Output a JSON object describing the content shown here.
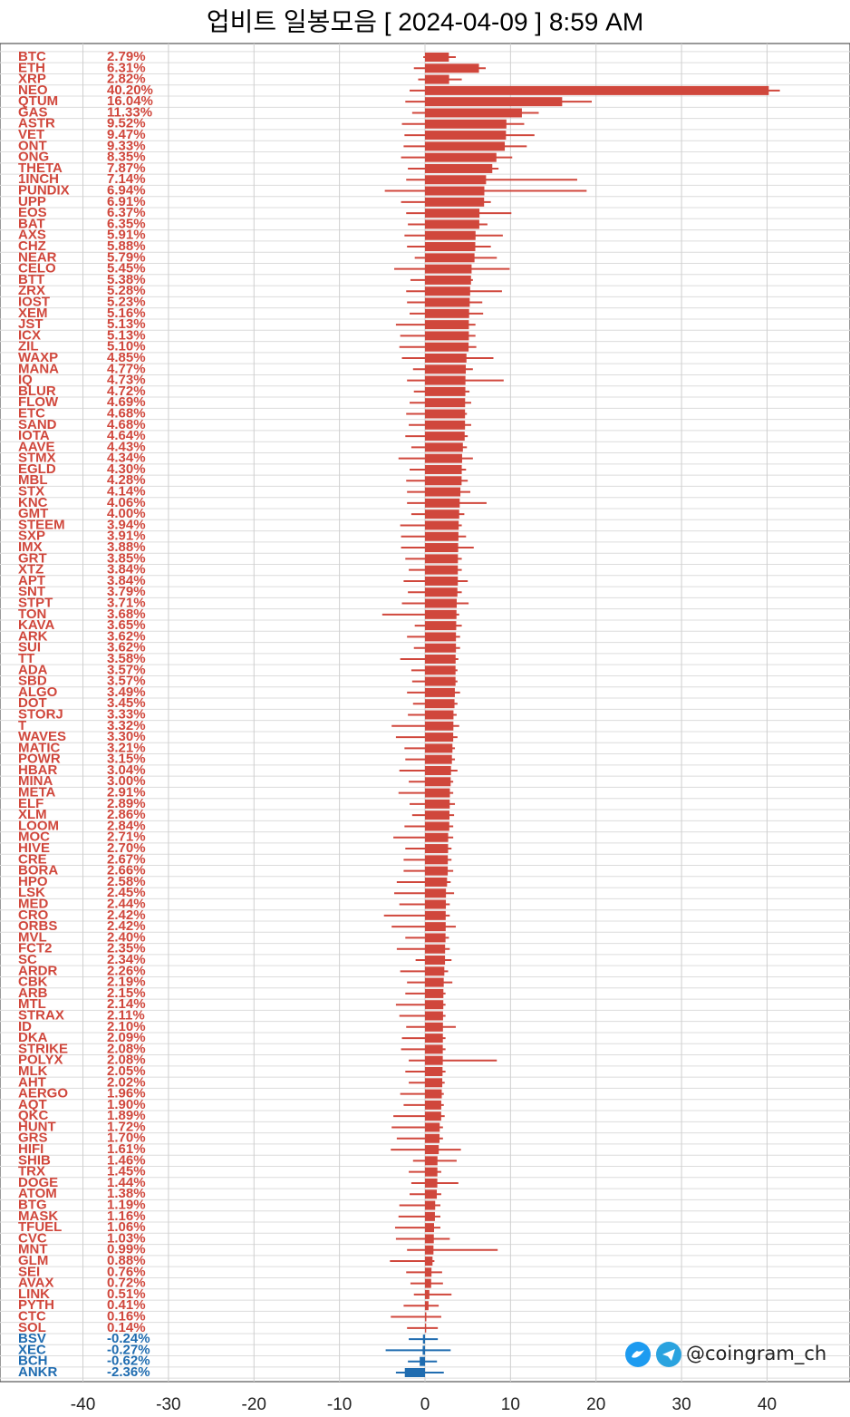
{
  "chart_data": {
    "type": "bar",
    "orientation": "horizontal",
    "title": "업비트 일봉모음 [ 2024-04-09 ]  8:59 AM",
    "watermark": "@coingram_ch",
    "categories": [
      "BTC",
      "ETH",
      "XRP",
      "NEO",
      "QTUM",
      "GAS",
      "ASTR",
      "VET",
      "ONT",
      "ONG",
      "THETA",
      "1INCH",
      "PUNDIX",
      "UPP",
      "EOS",
      "BAT",
      "AXS",
      "CHZ",
      "NEAR",
      "CELO",
      "BTT",
      "ZRX",
      "IOST",
      "XEM",
      "JST",
      "ICX",
      "ZIL",
      "WAXP",
      "MANA",
      "IQ",
      "BLUR",
      "FLOW",
      "ETC",
      "SAND",
      "IOTA",
      "AAVE",
      "STMX",
      "EGLD",
      "MBL",
      "STX",
      "KNC",
      "GMT",
      "STEEM",
      "SXP",
      "IMX",
      "GRT",
      "XTZ",
      "APT",
      "SNT",
      "STPT",
      "TON",
      "KAVA",
      "ARK",
      "SUI",
      "TT",
      "ADA",
      "SBD",
      "ALGO",
      "DOT",
      "STORJ",
      "T",
      "WAVES",
      "MATIC",
      "POWR",
      "HBAR",
      "MINA",
      "META",
      "ELF",
      "XLM",
      "LOOM",
      "MOC",
      "HIVE",
      "CRE",
      "BORA",
      "HPO",
      "LSK",
      "MED",
      "CRO",
      "ORBS",
      "MVL",
      "FCT2",
      "SC",
      "ARDR",
      "CBK",
      "ARB",
      "MTL",
      "STRAX",
      "ID",
      "DKA",
      "STRIKE",
      "POLYX",
      "MLK",
      "AHT",
      "AERGO",
      "AQT",
      "QKC",
      "HUNT",
      "GRS",
      "HIFI",
      "SHIB",
      "TRX",
      "DOGE",
      "ATOM",
      "BTG",
      "MASK",
      "TFUEL",
      "CVC",
      "MNT",
      "GLM",
      "SEI",
      "AVAX",
      "LINK",
      "PYTH",
      "CTC",
      "SOL",
      "BSV",
      "XEC",
      "BCH",
      "ANKR"
    ],
    "series": [
      {
        "values": [
          2.79,
          6.31,
          2.82,
          40.2,
          16.04,
          11.33,
          9.52,
          9.47,
          9.33,
          8.35,
          7.87,
          7.14,
          6.94,
          6.91,
          6.37,
          6.35,
          5.91,
          5.88,
          5.79,
          5.45,
          5.38,
          5.28,
          5.23,
          5.16,
          5.13,
          5.13,
          5.1,
          4.85,
          4.77,
          4.73,
          4.72,
          4.69,
          4.68,
          4.68,
          4.64,
          4.43,
          4.34,
          4.3,
          4.28,
          4.14,
          4.06,
          4.0,
          3.94,
          3.91,
          3.88,
          3.85,
          3.84,
          3.84,
          3.79,
          3.71,
          3.68,
          3.65,
          3.62,
          3.62,
          3.58,
          3.57,
          3.57,
          3.49,
          3.45,
          3.33,
          3.32,
          3.3,
          3.21,
          3.15,
          3.04,
          3.0,
          2.91,
          2.89,
          2.86,
          2.84,
          2.71,
          2.7,
          2.67,
          2.66,
          2.58,
          2.45,
          2.44,
          2.42,
          2.42,
          2.4,
          2.35,
          2.34,
          2.26,
          2.19,
          2.15,
          2.14,
          2.11,
          2.1,
          2.09,
          2.08,
          2.08,
          2.05,
          2.02,
          1.96,
          1.9,
          1.89,
          1.72,
          1.7,
          1.61,
          1.46,
          1.45,
          1.44,
          1.38,
          1.19,
          1.16,
          1.06,
          1.03,
          0.99,
          0.88,
          0.76,
          0.72,
          0.51,
          0.41,
          0.16,
          0.14,
          -0.24,
          -0.27,
          -0.62,
          -2.36
        ],
        "value_labels": [
          "2.79%",
          "6.31%",
          "2.82%",
          "40.20%",
          "16.04%",
          "11.33%",
          "9.52%",
          "9.47%",
          "9.33%",
          "8.35%",
          "7.87%",
          "7.14%",
          "6.94%",
          "6.91%",
          "6.37%",
          "6.35%",
          "5.91%",
          "5.88%",
          "5.79%",
          "5.45%",
          "5.38%",
          "5.28%",
          "5.23%",
          "5.16%",
          "5.13%",
          "5.13%",
          "5.10%",
          "4.85%",
          "4.77%",
          "4.73%",
          "4.72%",
          "4.69%",
          "4.68%",
          "4.68%",
          "4.64%",
          "4.43%",
          "4.34%",
          "4.30%",
          "4.28%",
          "4.14%",
          "4.06%",
          "4.00%",
          "3.94%",
          "3.91%",
          "3.88%",
          "3.85%",
          "3.84%",
          "3.84%",
          "3.79%",
          "3.71%",
          "3.68%",
          "3.65%",
          "3.62%",
          "3.62%",
          "3.58%",
          "3.57%",
          "3.57%",
          "3.49%",
          "3.45%",
          "3.33%",
          "3.32%",
          "3.30%",
          "3.21%",
          "3.15%",
          "3.04%",
          "3.00%",
          "2.91%",
          "2.89%",
          "2.86%",
          "2.84%",
          "2.71%",
          "2.70%",
          "2.67%",
          "2.66%",
          "2.58%",
          "2.45%",
          "2.44%",
          "2.42%",
          "2.42%",
          "2.40%",
          "2.35%",
          "2.34%",
          "2.26%",
          "2.19%",
          "2.15%",
          "2.14%",
          "2.11%",
          "2.10%",
          "2.09%",
          "2.08%",
          "2.08%",
          "2.05%",
          "2.02%",
          "1.96%",
          "1.90%",
          "1.89%",
          "1.72%",
          "1.70%",
          "1.61%",
          "1.46%",
          "1.45%",
          "1.44%",
          "1.38%",
          "1.19%",
          "1.16%",
          "1.06%",
          "1.03%",
          "0.99%",
          "0.88%",
          "0.76%",
          "0.72%",
          "0.51%",
          "0.41%",
          "0.16%",
          "0.14%",
          "-0.24%",
          "-0.27%",
          "-0.62%",
          "-2.36%"
        ],
        "low": [
          -0.2,
          -1.3,
          -0.8,
          -1.8,
          -2.3,
          -1.5,
          -2.7,
          -2.4,
          -2.5,
          -2.8,
          -2,
          -2.2,
          -4.7,
          -2.8,
          -2.2,
          -2,
          -2.4,
          -2.1,
          -1.2,
          -3.6,
          -1.7,
          -2.2,
          -2.1,
          -1.8,
          -3.4,
          -2.9,
          -3,
          -2.7,
          -1.4,
          -2.1,
          -1.3,
          -1.8,
          -2.2,
          -1.9,
          -2.3,
          -1.6,
          -3.1,
          -1.8,
          -2.2,
          -2.1,
          -2.1,
          -1.6,
          -2.9,
          -2.8,
          -2.8,
          -2.3,
          -1.9,
          -2.5,
          -2,
          -2.7,
          -5,
          -1.2,
          -2.1,
          -1.3,
          -2.9,
          -1.6,
          -1.5,
          -2.1,
          -1.4,
          -2,
          -3.9,
          -3.4,
          -2.4,
          -2.3,
          -3,
          -1.9,
          -3.1,
          -1.8,
          -1.5,
          -2.4,
          -3.7,
          -2.3,
          -2.5,
          -2.5,
          -3.3,
          -3.6,
          -3,
          -4.8,
          -3.9,
          -2.3,
          -3.3,
          -1.1,
          -2.9,
          -2.1,
          -2.3,
          -3.4,
          -3,
          -2.2,
          -2.7,
          -2.8,
          -1.9,
          -2.3,
          -1.9,
          -2.9,
          -2.5,
          -3.7,
          -3.9,
          -3.3,
          -4,
          -1.4,
          -1.9,
          -1.6,
          -1.8,
          -3,
          -3.1,
          -3.5,
          -3.4,
          -2.1,
          -4.1,
          -2.2,
          -1.7,
          -1.3,
          -2.5,
          -4,
          -2.1,
          -1.9,
          -4.6,
          -2,
          -3.4
        ],
        "high": [
          3.6,
          7.1,
          4.3,
          41.5,
          19.5,
          13.3,
          11.6,
          12.8,
          11.9,
          10.2,
          8.6,
          17.8,
          18.9,
          7.7,
          10.1,
          7.3,
          9.1,
          7.7,
          8.4,
          9.9,
          5.6,
          9,
          6.7,
          6.8,
          5.9,
          5.9,
          6,
          8,
          5.6,
          9.2,
          5.2,
          5.4,
          4.9,
          5.4,
          5,
          4.9,
          5.6,
          4.8,
          5,
          5.3,
          7.2,
          4.6,
          4.3,
          4.8,
          5.7,
          4.3,
          4.3,
          5,
          4.3,
          5.1,
          4,
          4.3,
          4.1,
          4.1,
          3.9,
          3.8,
          3.8,
          4.1,
          3.8,
          3.7,
          4,
          3.8,
          3.5,
          3.5,
          3.8,
          3.3,
          3.3,
          3.5,
          3.4,
          3.3,
          3.3,
          3.1,
          3.1,
          3.3,
          3,
          3.4,
          2.9,
          2.9,
          3.6,
          2.8,
          2.9,
          3.1,
          2.7,
          3.2,
          2.4,
          2.4,
          2.4,
          3.6,
          2.4,
          2.4,
          8.4,
          2.4,
          2.3,
          2.2,
          2.2,
          2.3,
          2.1,
          2.1,
          4.2,
          3.7,
          1.9,
          3.9,
          1.9,
          1.8,
          1.8,
          1.8,
          2.9,
          8.5,
          1.1,
          2,
          2.1,
          3.1,
          1.6,
          1.9,
          1.5,
          1.5,
          3,
          1.4,
          2.2
        ]
      }
    ],
    "positive_color": "#d0473c",
    "negative_color": "#1f6cb0",
    "xlim": [
      -49.7,
      49.7
    ],
    "xticks": [
      -40,
      -30,
      -20,
      -10,
      0,
      10,
      20,
      30,
      40
    ],
    "grid": true
  }
}
